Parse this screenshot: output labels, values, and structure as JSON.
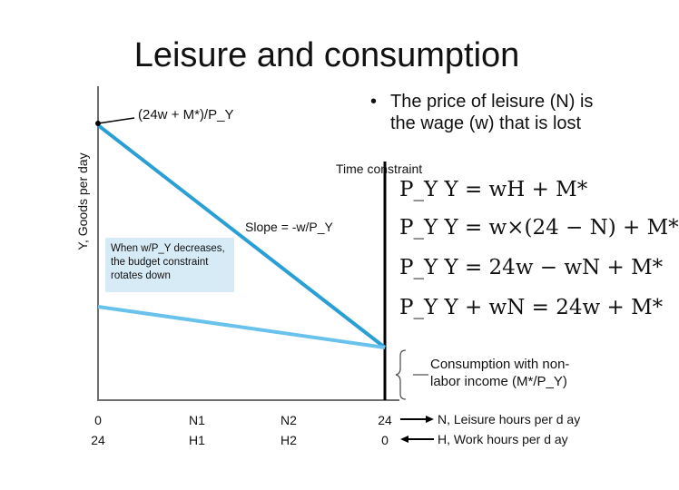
{
  "title": "Leisure and consumption",
  "bullet": {
    "symbol": "•",
    "line1": "The price of leisure (N) is",
    "line2": "the wage (w) that is lost"
  },
  "y_axis_label": "Y, Goods per day",
  "intercept_label": "(24w + M*)/P_Y",
  "time_constraint_label": "Time constraint",
  "slope_label": "Slope = -w/P_Y",
  "annotation": "When w/P_Y decreases, the budget constraint rotates down",
  "equations": [
    "P_Y Y = wH + M*",
    "P_Y Y = w×(24 − N) + M*",
    "P_Y Y = 24w − wN + M*",
    "P_Y Y + wN = 24w + M*"
  ],
  "consumption_label": {
    "line1": "Consumption with non-",
    "line2": "labor income (M*/P_Y)"
  },
  "x_ticks": [
    {
      "top": "0",
      "bottom": "24"
    },
    {
      "top": "N1",
      "bottom": "H1"
    },
    {
      "top": "N2",
      "bottom": "H2"
    },
    {
      "top": "24",
      "bottom": "0"
    }
  ],
  "legend": {
    "n_label": "N, Leisure hours per d ay",
    "h_label": "H, Work hours per d ay"
  },
  "colors": {
    "budget_line": "#2a9fd6",
    "rotated_line": "#68c2ec",
    "axis": "#6e6e6e",
    "annotation_fill": "#d6ebf6"
  }
}
